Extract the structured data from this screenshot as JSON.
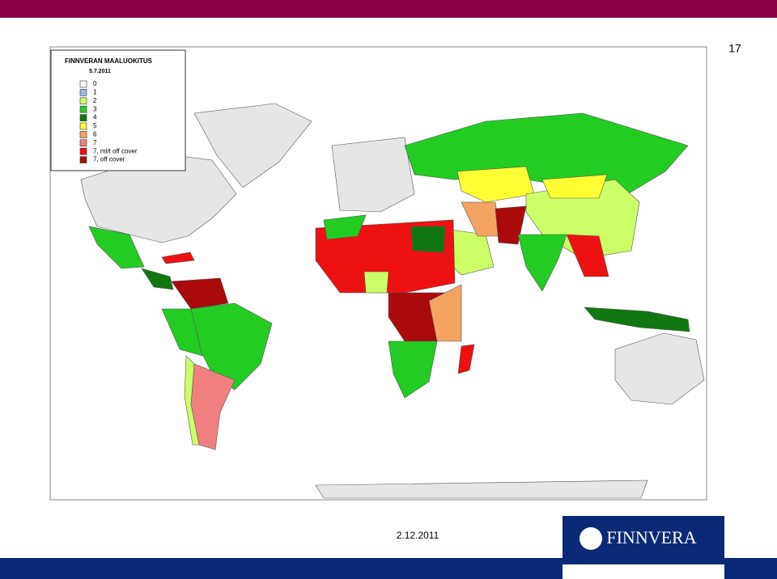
{
  "page_number": "17",
  "legend": {
    "title": "FINNVERAN MAALUOKITUS",
    "date": "5.7.2011",
    "items": [
      {
        "label": "0",
        "color": "#ffffff"
      },
      {
        "label": "1",
        "color": "#9db9e6"
      },
      {
        "label": "2",
        "color": "#ccff66"
      },
      {
        "label": "3",
        "color": "#22cc22"
      },
      {
        "label": "4",
        "color": "#117711"
      },
      {
        "label": "5",
        "color": "#ffff33"
      },
      {
        "label": "6",
        "color": "#f4a460"
      },
      {
        "label": "7",
        "color": "#f08080"
      },
      {
        "label": "7, ml/t off cover",
        "color": "#ee1111"
      },
      {
        "label": "7, off cover",
        "color": "#aa0a0a"
      }
    ]
  },
  "footer": {
    "date": "2.12.2011",
    "logo": "FINNVERA"
  }
}
